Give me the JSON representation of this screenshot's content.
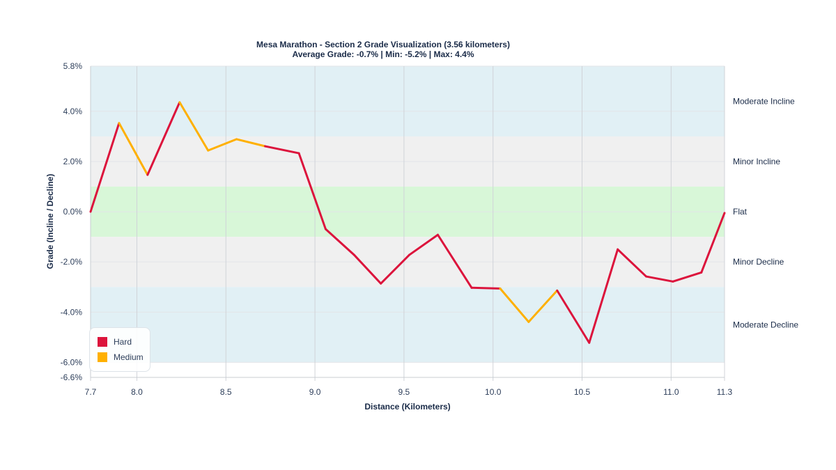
{
  "chart_data": {
    "type": "line",
    "title": "Mesa Marathon - Section 2 Grade Visualization (3.56 kilometers)",
    "subtitle": "Average Grade: -0.7% | Min: -5.2% | Max: 4.4%",
    "xlabel": "Distance (Kilometers)",
    "ylabel": "Grade (Incline / Decline)",
    "xlim": [
      7.74,
      11.3
    ],
    "ylim": [
      -6.6,
      5.8
    ],
    "x_ticks": [
      "7.7",
      "8.0",
      "8.5",
      "9.0",
      "9.5",
      "10.0",
      "10.5",
      "11.0",
      "11.3"
    ],
    "x_tick_values": [
      7.74,
      8.0,
      8.5,
      9.0,
      9.5,
      10.0,
      10.5,
      11.0,
      11.3
    ],
    "y_ticks": [
      "5.8%",
      "4.0%",
      "2.0%",
      "0.0%",
      "-2.0%",
      "-4.0%",
      "-6.0%",
      "-6.6%"
    ],
    "y_tick_values": [
      5.8,
      4,
      2,
      0,
      -2,
      -4,
      -6,
      -6.6
    ],
    "grid": true,
    "bands": [
      {
        "label": "Moderate Incline",
        "from": 3,
        "to": 5.8,
        "color": "#e1f0f5"
      },
      {
        "label": "Minor Incline",
        "from": 1,
        "to": 3,
        "color": "#f0f0f0"
      },
      {
        "label": "Flat",
        "from": -1,
        "to": 1,
        "color": "#d8f7d8"
      },
      {
        "label": "Minor Decline",
        "from": -3,
        "to": -1,
        "color": "#f0f0f0"
      },
      {
        "label": "Moderate Decline",
        "from": -6,
        "to": -3,
        "color": "#e1f0f5"
      }
    ],
    "points": [
      [
        7.74,
        0.0
      ],
      [
        7.9,
        3.53
      ],
      [
        8.06,
        1.47
      ],
      [
        8.24,
        4.36
      ],
      [
        8.4,
        2.44
      ],
      [
        8.56,
        2.89
      ],
      [
        8.72,
        2.61
      ],
      [
        8.91,
        2.33
      ],
      [
        9.06,
        -0.69
      ],
      [
        9.22,
        -1.72
      ],
      [
        9.37,
        -2.86
      ],
      [
        9.53,
        -1.72
      ],
      [
        9.69,
        -0.92
      ],
      [
        9.88,
        -3.03
      ],
      [
        10.04,
        -3.06
      ],
      [
        10.2,
        -4.39
      ],
      [
        10.36,
        -3.14
      ],
      [
        10.54,
        -5.22
      ],
      [
        10.7,
        -1.5
      ],
      [
        10.86,
        -2.58
      ],
      [
        11.01,
        -2.78
      ],
      [
        11.17,
        -2.42
      ],
      [
        11.3,
        -0.05
      ]
    ],
    "segment_difficulty": [
      "Hard",
      "Medium",
      "Hard",
      "Medium",
      "Medium",
      "Medium",
      "Hard",
      "Hard",
      "Hard",
      "Hard",
      "Hard",
      "Hard",
      "Hard",
      "Hard",
      "Medium",
      "Medium",
      "Hard",
      "Hard",
      "Hard",
      "Hard",
      "Hard",
      "Hard"
    ],
    "legend": {
      "placement": "bottom-left",
      "entries": [
        {
          "name": "Hard",
          "color": "#dc143c"
        },
        {
          "name": "Medium",
          "color": "#ffb000"
        }
      ]
    }
  }
}
